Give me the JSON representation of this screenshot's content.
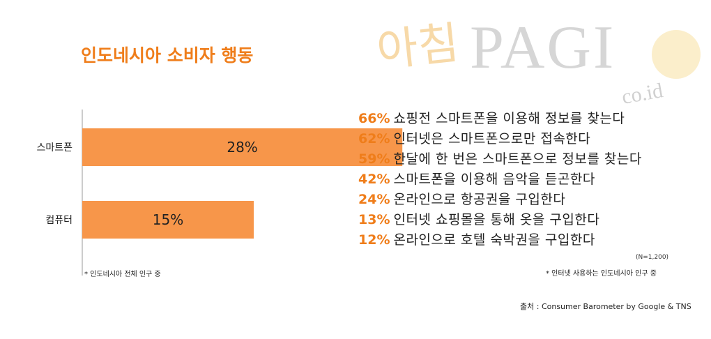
{
  "title": "인도네시아 소비자 행동",
  "watermark": {
    "korean": "아침",
    "brand": "PAGI",
    "domain": "co.id"
  },
  "colors": {
    "accent": "#ef7d1a",
    "bar": "#f7964a",
    "text": "#222222"
  },
  "chart_data": {
    "type": "bar",
    "orientation": "horizontal",
    "categories": [
      "스마트폰",
      "컴퓨터"
    ],
    "values": [
      28,
      15
    ],
    "value_labels": [
      "28%",
      "15%"
    ],
    "xlim": [
      0,
      50
    ],
    "unit": "%",
    "grid": false,
    "title": "",
    "xlabel": "",
    "ylabel": ""
  },
  "note_left": "* 인도네시아 전체 인구 중",
  "stats": [
    {
      "pct": "66%",
      "text": "쇼핑전 스마트폰을 이용해 정보를 찾는다"
    },
    {
      "pct": "62%",
      "text": "인터넷은 스마트폰으로만 접속한다"
    },
    {
      "pct": "59%",
      "text": "한달에 한 번은 스마트폰으로 정보를 찾는다"
    },
    {
      "pct": "42%",
      "text": "스마트폰을 이용해 음악을 듣곤한다"
    },
    {
      "pct": "24%",
      "text": "온라인으로 항공권을 구입한다"
    },
    {
      "pct": "13%",
      "text": "인터넷 쇼핑몰을 통해 옷을 구입한다"
    },
    {
      "pct": "12%",
      "text": "온라인으로 호텔 숙박권을 구입한다"
    }
  ],
  "sample_note": "(N=1,200)",
  "note_right": "* 인터넷 사용하는 인도네시아 인구 중",
  "source": "출처 : Consumer Barometer by Google & TNS"
}
